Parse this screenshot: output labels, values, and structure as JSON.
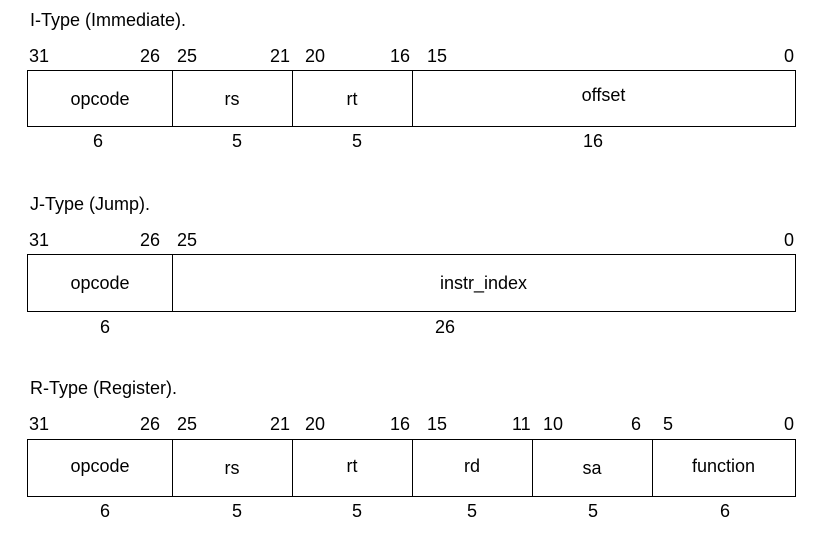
{
  "i_type": {
    "title": "I-Type (Immediate).",
    "bits": [
      "31",
      "26",
      "25",
      "21",
      "20",
      "16",
      "15",
      "0"
    ],
    "fields": [
      "opcode",
      "rs",
      "rt",
      "offset"
    ],
    "widths": [
      "6",
      "5",
      "5",
      "16"
    ]
  },
  "j_type": {
    "title": "J-Type (Jump).",
    "bits": [
      "31",
      "26",
      "25",
      "0"
    ],
    "fields": [
      "opcode",
      "instr_index"
    ],
    "widths": [
      "6",
      "26"
    ]
  },
  "r_type": {
    "title": "R-Type (Register).",
    "bits": [
      "31",
      "26",
      "25",
      "21",
      "20",
      "16",
      "15",
      "11",
      "10",
      "6",
      "5",
      "0"
    ],
    "fields": [
      "opcode",
      "rs",
      "rt",
      "rd",
      "sa",
      "function"
    ],
    "widths": [
      "6",
      "5",
      "5",
      "5",
      "5",
      "6"
    ]
  }
}
